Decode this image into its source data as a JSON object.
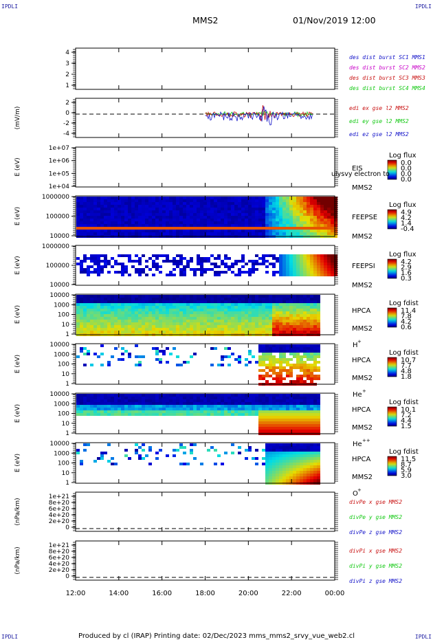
{
  "header": {
    "corner_label": "IPDLI",
    "title": "MMS2",
    "datetime": "01/Nov/2019 12:00"
  },
  "footer": {
    "text": "Produced by cl (IRAP)   Printing date: 02/Dec/2023   mms_mms2_srvy_vue_web2.cl"
  },
  "colors": {
    "blue": "#1010c8",
    "magenta": "#c800c8",
    "red": "#c81010",
    "green": "#10c810",
    "spec_low": "#1a1ad6",
    "spec_high": "#c80000"
  },
  "chart_data": {
    "type": "heatmap",
    "x_axis": {
      "ticks": [
        "12:00",
        "14:00",
        "16:00",
        "18:00",
        "20:00",
        "22:00",
        "00:00"
      ],
      "range": [
        "12:00",
        "00:00"
      ]
    },
    "panels": [
      {
        "id": "p1",
        "ylabel": "",
        "yticks": [
          "4",
          "3",
          "2",
          "1"
        ],
        "legend": [
          {
            "text": "des dist burst SC1 MMS1",
            "color": "#1010c8"
          },
          {
            "text": "des dist burst SC2 MMS2",
            "color": "#c800c8"
          },
          {
            "text": "des dist burst SC3 MMS3",
            "color": "#c81010"
          },
          {
            "text": "des dist burst SC4 MMS4",
            "color": "#10c810"
          }
        ]
      },
      {
        "id": "p2",
        "ylabel": "(mV/m)",
        "yticks": [
          "2",
          "0",
          "-2",
          "-4"
        ],
        "legend": [
          {
            "text": "edi ex gse l2 MMS2",
            "color": "#c81010"
          },
          {
            "text": "edi ey gse l2 MMS2",
            "color": "#10c810"
          },
          {
            "text": "edi ez gse l2 MMS2",
            "color": "#1010c8"
          }
        ],
        "data_span": [
          "18:00",
          "23:00"
        ]
      },
      {
        "id": "p3",
        "ylabel": "E (eV)",
        "yticks": [
          "1e+07",
          "1e+06",
          "1e+05",
          "1e+04"
        ],
        "instrument": [
          "EIS",
          "MMS2"
        ],
        "overlay": "ulysvy electron to",
        "cbar_title": "Log flux",
        "cbar_ticks": [
          "0.0",
          "0.0",
          "0.0",
          "0.0"
        ]
      },
      {
        "id": "p4",
        "ylabel": "E (eV)",
        "yticks": [
          "1000000",
          "100000",
          "10000"
        ],
        "instrument": [
          "FEEPSE",
          "MMS2"
        ],
        "cbar_title": "Log flux",
        "cbar_ticks": [
          "4.9",
          "4.2",
          "1.4",
          "-0.4"
        ]
      },
      {
        "id": "p5",
        "ylabel": "E (eV)",
        "yticks": [
          "1000000",
          "100000",
          "10000"
        ],
        "instrument": [
          "FEEPSI",
          "MMS2"
        ],
        "cbar_title": "Log flux",
        "cbar_ticks": [
          "4.2",
          "2.9",
          "1.6",
          "0.3"
        ]
      },
      {
        "id": "p6",
        "ylabel": "E (eV)",
        "yticks": [
          "10000",
          "1000",
          "100",
          "10",
          "1"
        ],
        "instrument": [
          "HPCA",
          "MMS2"
        ],
        "species": "H",
        "charge": "+",
        "cbar_title": "Log fdist",
        "cbar_ticks": [
          "11.4",
          "7.8",
          "4.2",
          "0.6"
        ]
      },
      {
        "id": "p7",
        "ylabel": "E (eV)",
        "yticks": [
          "10000",
          "1000",
          "100",
          "10",
          "1"
        ],
        "instrument": [
          "HPCA",
          "MMS2"
        ],
        "species": "He",
        "charge": "+",
        "cbar_title": "Log fdist",
        "cbar_ticks": [
          "10.7",
          "7.7",
          "4.8",
          "1.8"
        ]
      },
      {
        "id": "p8",
        "ylabel": "E (eV)",
        "yticks": [
          "10000",
          "1000",
          "100",
          "10",
          "1"
        ],
        "instrument": [
          "HPCA",
          "MMS2"
        ],
        "species": "He",
        "charge": "++",
        "cbar_title": "Log fdist",
        "cbar_ticks": [
          "10.1",
          "7.2",
          "4.4",
          "1.5"
        ]
      },
      {
        "id": "p9",
        "ylabel": "E (eV)",
        "yticks": [
          "10000",
          "1000",
          "100",
          "10",
          "1"
        ],
        "instrument": [
          "HPCA",
          "MMS2"
        ],
        "species": "O",
        "charge": "+",
        "cbar_title": "Log fdist",
        "cbar_ticks": [
          "11.5",
          "8.7",
          "5.9",
          "3.0"
        ]
      },
      {
        "id": "p10",
        "ylabel": "(nPa/km)",
        "yticks": [
          "1e+21",
          "8e+20",
          "6e+20",
          "4e+20",
          "2e+20",
          "0"
        ],
        "legend": [
          {
            "text": "divPe x gse MMS2",
            "color": "#c81010"
          },
          {
            "text": "divPe y gse MMS2",
            "color": "#10c810"
          },
          {
            "text": "divPe z gse MMS2",
            "color": "#1010c8"
          }
        ]
      },
      {
        "id": "p11",
        "ylabel": "(nPa/km)",
        "yticks": [
          "1e+21",
          "8e+20",
          "6e+20",
          "4e+20",
          "2e+20",
          "0"
        ],
        "legend": [
          {
            "text": "divPi x gse MMS2",
            "color": "#c81010"
          },
          {
            "text": "divPi y gse MMS2",
            "color": "#10c810"
          },
          {
            "text": "divPi z gse MMS2",
            "color": "#1010c8"
          }
        ]
      }
    ]
  }
}
